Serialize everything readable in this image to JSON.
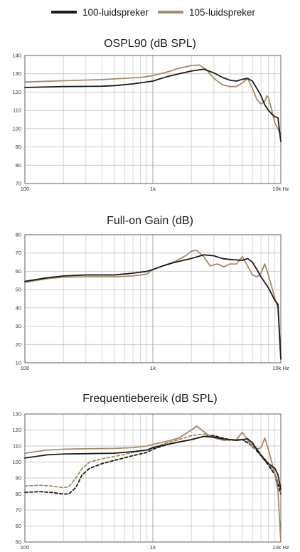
{
  "legend": [
    {
      "label": "100-luidspreker",
      "color": "#1a1a1a"
    },
    {
      "label": "105-luidspreker",
      "color": "#a68a66"
    }
  ],
  "chart_data": [
    {
      "type": "line",
      "title": "OSPL90 (dB SPL)",
      "x_scale": "log",
      "xlim": [
        100,
        10000
      ],
      "ylim": [
        70,
        140
      ],
      "yticks": [
        70,
        80,
        90,
        100,
        110,
        120,
        130,
        140
      ],
      "xtick_labels": [
        {
          "x": 100,
          "label": "100"
        },
        {
          "x": 1000,
          "label": "1k"
        },
        {
          "x": 10000,
          "label": "10k Hz"
        }
      ],
      "grid": true,
      "series": [
        {
          "name": "100-luidspreker",
          "color": "#1a1a1a",
          "dashed": false,
          "points": [
            [
              100,
              122.5
            ],
            [
              200,
              123
            ],
            [
              400,
              123.2
            ],
            [
              500,
              123.5
            ],
            [
              700,
              124.5
            ],
            [
              1000,
              126
            ],
            [
              1300,
              128.5
            ],
            [
              1600,
              130
            ],
            [
              2000,
              131.5
            ],
            [
              2500,
              132.5
            ],
            [
              3000,
              130.5
            ],
            [
              3500,
              128
            ],
            [
              4000,
              126.5
            ],
            [
              4500,
              126
            ],
            [
              5000,
              127
            ],
            [
              5500,
              127.5
            ],
            [
              6000,
              126
            ],
            [
              6500,
              122
            ],
            [
              7000,
              118
            ],
            [
              7500,
              113
            ],
            [
              8000,
              110
            ],
            [
              8500,
              108
            ],
            [
              9000,
              106.5
            ],
            [
              9500,
              106
            ],
            [
              9800,
              98
            ],
            [
              10000,
              93
            ]
          ]
        },
        {
          "name": "105-luidspreker",
          "color": "#a68a66",
          "dashed": false,
          "points": [
            [
              100,
              125.5
            ],
            [
              200,
              126.2
            ],
            [
              400,
              126.8
            ],
            [
              600,
              127.5
            ],
            [
              800,
              128
            ],
            [
              1000,
              129
            ],
            [
              1300,
              131
            ],
            [
              1600,
              133
            ],
            [
              2000,
              134.5
            ],
            [
              2300,
              134.8
            ],
            [
              2600,
              132.5
            ],
            [
              3000,
              127.5
            ],
            [
              3500,
              124
            ],
            [
              4000,
              123
            ],
            [
              4500,
              123
            ],
            [
              5000,
              125
            ],
            [
              5500,
              127.5
            ],
            [
              6000,
              122
            ],
            [
              6500,
              116
            ],
            [
              7000,
              113.5
            ],
            [
              7500,
              115
            ],
            [
              7800,
              118
            ],
            [
              8000,
              117
            ],
            [
              8500,
              110
            ],
            [
              9000,
              103
            ],
            [
              9500,
              100
            ],
            [
              10000,
              96
            ]
          ]
        }
      ]
    },
    {
      "type": "line",
      "title": "Full-on Gain (dB)",
      "x_scale": "log",
      "xlim": [
        100,
        10000
      ],
      "ylim": [
        10,
        80
      ],
      "yticks": [
        10,
        20,
        30,
        40,
        50,
        60,
        70,
        80
      ],
      "xtick_labels": [
        {
          "x": 100,
          "label": "100"
        },
        {
          "x": 1000,
          "label": "1k"
        },
        {
          "x": 10000,
          "label": "10k Hz"
        }
      ],
      "grid": true,
      "series": [
        {
          "name": "100-luidspreker",
          "color": "#1a1a1a",
          "dashed": false,
          "points": [
            [
              100,
              54.5
            ],
            [
              150,
              56.5
            ],
            [
              200,
              57.5
            ],
            [
              300,
              58
            ],
            [
              500,
              58
            ],
            [
              700,
              59
            ],
            [
              900,
              60
            ],
            [
              1000,
              61
            ],
            [
              1200,
              63
            ],
            [
              1500,
              65
            ],
            [
              2000,
              67
            ],
            [
              2500,
              69
            ],
            [
              3000,
              68.5
            ],
            [
              3500,
              67
            ],
            [
              4000,
              66.5
            ],
            [
              5000,
              66
            ],
            [
              5500,
              67
            ],
            [
              6000,
              65
            ],
            [
              6500,
              61
            ],
            [
              7000,
              57
            ],
            [
              8000,
              51
            ],
            [
              9000,
              44
            ],
            [
              9500,
              42
            ],
            [
              10000,
              12
            ]
          ]
        },
        {
          "name": "105-luidspreker",
          "color": "#a68a66",
          "dashed": false,
          "points": [
            [
              100,
              54
            ],
            [
              150,
              56
            ],
            [
              200,
              56.8
            ],
            [
              300,
              57
            ],
            [
              500,
              57
            ],
            [
              700,
              57.5
            ],
            [
              900,
              58.5
            ],
            [
              1000,
              61
            ],
            [
              1200,
              63
            ],
            [
              1500,
              65.5
            ],
            [
              1800,
              68.5
            ],
            [
              2000,
              71
            ],
            [
              2200,
              71.5
            ],
            [
              2500,
              68
            ],
            [
              2800,
              63
            ],
            [
              3200,
              64
            ],
            [
              3600,
              62.5
            ],
            [
              4000,
              64
            ],
            [
              4500,
              64
            ],
            [
              5000,
              68
            ],
            [
              5500,
              63
            ],
            [
              6000,
              58
            ],
            [
              6500,
              57
            ],
            [
              7000,
              59
            ],
            [
              7500,
              64
            ],
            [
              8000,
              58
            ],
            [
              9000,
              45
            ],
            [
              9500,
              40
            ],
            [
              10000,
              12
            ]
          ]
        }
      ]
    },
    {
      "type": "line",
      "title": "Frequentiebereik (dB SPL)",
      "x_scale": "log",
      "xlim": [
        100,
        10000
      ],
      "ylim": [
        50,
        130
      ],
      "yticks": [
        50,
        60,
        70,
        80,
        90,
        100,
        110,
        120,
        130
      ],
      "xtick_labels": [
        {
          "x": 100,
          "label": "100"
        },
        {
          "x": 1000,
          "label": "1k"
        },
        {
          "x": 10000,
          "label": "10k Hz"
        }
      ],
      "grid": true,
      "series": [
        {
          "name": "100-luidspreker",
          "color": "#1a1a1a",
          "dashed": false,
          "points": [
            [
              100,
              102.5
            ],
            [
              150,
              104.5
            ],
            [
              200,
              105
            ],
            [
              300,
              105.2
            ],
            [
              500,
              105.5
            ],
            [
              700,
              106.5
            ],
            [
              900,
              107.5
            ],
            [
              1000,
              109
            ],
            [
              1300,
              111
            ],
            [
              1600,
              112.5
            ],
            [
              2000,
              114
            ],
            [
              2500,
              116
            ],
            [
              3000,
              115.5
            ],
            [
              3500,
              114.5
            ],
            [
              4000,
              114
            ],
            [
              4500,
              113.5
            ],
            [
              5000,
              114
            ],
            [
              5500,
              114.5
            ],
            [
              6000,
              112
            ],
            [
              6500,
              108
            ],
            [
              7000,
              104
            ],
            [
              8000,
              99
            ],
            [
              9000,
              96
            ],
            [
              9500,
              92
            ],
            [
              10000,
              83
            ]
          ]
        },
        {
          "name": "105-luidspreker",
          "color": "#a68a66",
          "dashed": false,
          "points": [
            [
              100,
              105.5
            ],
            [
              150,
              107.5
            ],
            [
              200,
              108
            ],
            [
              300,
              108.3
            ],
            [
              500,
              108.5
            ],
            [
              700,
              109
            ],
            [
              900,
              110
            ],
            [
              1000,
              111
            ],
            [
              1300,
              113
            ],
            [
              1600,
              115
            ],
            [
              2000,
              120
            ],
            [
              2200,
              122.5
            ],
            [
              2500,
              119
            ],
            [
              2800,
              116
            ],
            [
              3200,
              114.5
            ],
            [
              3600,
              113.5
            ],
            [
              4000,
              114
            ],
            [
              4500,
              114
            ],
            [
              5000,
              118.5
            ],
            [
              5500,
              114
            ],
            [
              6000,
              109
            ],
            [
              6500,
              108
            ],
            [
              7000,
              109
            ],
            [
              7500,
              115
            ],
            [
              8000,
              108
            ],
            [
              9000,
              92
            ],
            [
              9500,
              82
            ],
            [
              10000,
              50
            ]
          ]
        },
        {
          "name": "100-luidspreker",
          "color": "#1a1a1a",
          "dashed": true,
          "points": [
            [
              100,
              81
            ],
            [
              130,
              81.5
            ],
            [
              160,
              81
            ],
            [
              200,
              80
            ],
            [
              220,
              80
            ],
            [
              250,
              84
            ],
            [
              280,
              92
            ],
            [
              320,
              96
            ],
            [
              400,
              99
            ],
            [
              500,
              101
            ],
            [
              700,
              104
            ],
            [
              900,
              106
            ],
            [
              1000,
              108
            ],
            [
              1300,
              111
            ],
            [
              1600,
              112.5
            ],
            [
              2000,
              114
            ],
            [
              2500,
              116
            ],
            [
              3000,
              116.5
            ],
            [
              3500,
              115
            ],
            [
              4000,
              114
            ],
            [
              5000,
              114
            ],
            [
              6000,
              110
            ],
            [
              7000,
              104
            ],
            [
              8000,
              98
            ],
            [
              9000,
              92
            ],
            [
              10000,
              80
            ]
          ]
        },
        {
          "name": "105-luidspreker",
          "color": "#a68a66",
          "dashed": true,
          "points": [
            [
              100,
              85
            ],
            [
              130,
              85.5
            ],
            [
              160,
              85
            ],
            [
              200,
              84
            ],
            [
              220,
              84.5
            ],
            [
              250,
              90
            ],
            [
              280,
              96
            ],
            [
              320,
              100
            ],
            [
              400,
              102
            ],
            [
              500,
              103.5
            ],
            [
              700,
              106
            ],
            [
              900,
              107.5
            ],
            [
              1000,
              109
            ],
            [
              1300,
              112
            ],
            [
              1600,
              114
            ],
            [
              2000,
              116.5
            ],
            [
              2500,
              117.5
            ],
            [
              3000,
              116
            ],
            [
              3500,
              114
            ],
            [
              4000,
              113.5
            ],
            [
              5000,
              114
            ],
            [
              6000,
              111
            ],
            [
              7000,
              105
            ],
            [
              8000,
              99
            ],
            [
              9000,
              93
            ],
            [
              10000,
              82
            ]
          ]
        }
      ]
    }
  ]
}
